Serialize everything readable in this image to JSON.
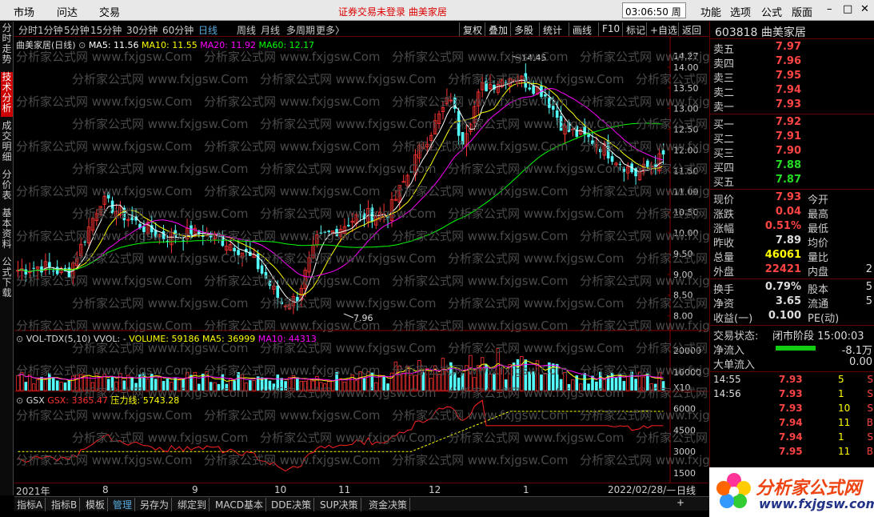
{
  "menu": {
    "market": "市场",
    "wenda": "问达",
    "trade": "交易",
    "notice": "证券交易未登录  曲美家居",
    "clock": "03:06:50 周三",
    "func": "功能",
    "options": "选项",
    "formula": "公式",
    "layout": "版面",
    "min": "–",
    "max": "□",
    "close": "✕"
  },
  "leftnav": [
    {
      "label": "分时走势"
    },
    {
      "label": "技术分析",
      "active": true
    },
    {
      "label": "成交明细"
    },
    {
      "label": "分价表"
    },
    {
      "label": "基本资料"
    },
    {
      "label": "公式下载"
    }
  ],
  "periods": [
    "分时",
    "1分钟",
    "5分钟",
    "15分钟",
    "30分钟",
    "60分钟",
    "日线",
    "周线",
    "月线",
    "多周期",
    "更多〉"
  ],
  "active_period": "日线",
  "tools": [
    "复权",
    "叠加",
    "多股",
    "统计",
    "画线",
    "F10",
    "标记",
    "+自选",
    "返回"
  ],
  "main_legend": {
    "name": "曲美家居(日线)",
    "ma5": "MA5: 11.56",
    "ma10": "MA10: 11.55",
    "ma20": "MA20: 11.92",
    "ma60": "MA60: 12.17"
  },
  "vol_legend": {
    "name": "VOL-TDX(5,10)",
    "vvol": "VVOL: -",
    "volume": "VOLUME: 59186",
    "ma5": "MA5: 36999",
    "ma10": "MA10: 44313"
  },
  "gsx_legend": {
    "name": "GSX",
    "gsx": "GSX: 3365.47",
    "yl": "压力线: 5743.28"
  },
  "price_axis": [
    "14.27",
    "14.00",
    "13.50",
    "13.00",
    "12.50",
    "12.00",
    "11.50",
    "11.00",
    "10.50",
    "10.00",
    "9.50",
    "9.00",
    "8.50",
    "8.00"
  ],
  "vol_axis": [
    "20000",
    "10000",
    "X10"
  ],
  "gsx_axis": [
    "6000",
    "4500",
    "3000",
    "1500"
  ],
  "hi_label": "14.45",
  "lo_label": "7.96",
  "dates": [
    "2021年",
    "8",
    "9",
    "10",
    "11",
    "12",
    "1",
    "2022/02/28/—"
  ],
  "dayline_btn": "日线",
  "colors": {
    "up": "#ff3333",
    "down": "#54ffff",
    "ma5": "#ffffff",
    "ma10": "#ffff00",
    "ma20": "#ff00ff",
    "ma60": "#00ff00"
  },
  "chart_data": {
    "type": "candlestick",
    "ma_last": {
      "MA5": 11.56,
      "MA10": 11.55,
      "MA20": 11.92,
      "MA60": 12.17
    },
    "high": 14.45,
    "low": 7.96
  },
  "quote": {
    "code": "603818",
    "name": "曲美家居",
    "asks": [
      {
        "l": "卖五",
        "p": "7.97"
      },
      {
        "l": "卖四",
        "p": "7.96"
      },
      {
        "l": "卖三",
        "p": "7.95"
      },
      {
        "l": "卖二",
        "p": "7.94"
      },
      {
        "l": "卖一",
        "p": "7.93"
      }
    ],
    "bids": [
      {
        "l": "买一",
        "p": "7.92",
        "c": "red"
      },
      {
        "l": "买二",
        "p": "7.91",
        "c": "red"
      },
      {
        "l": "买三",
        "p": "7.90",
        "c": "red"
      },
      {
        "l": "买四",
        "p": "7.88",
        "c": "green"
      },
      {
        "l": "买五",
        "p": "7.87",
        "c": "green"
      }
    ],
    "stats": [
      {
        "l": "现价",
        "v": "7.93",
        "c": "red",
        "l2": "今开",
        "v2": ""
      },
      {
        "l": "涨跌",
        "v": "0.04",
        "c": "red",
        "l2": "最高",
        "v2": ""
      },
      {
        "l": "涨幅",
        "v": "0.51%",
        "c": "red",
        "l2": "最低",
        "v2": ""
      },
      {
        "l": "昨收",
        "v": "7.89",
        "c": "white",
        "l2": "均价",
        "v2": ""
      },
      {
        "l": "总量",
        "v": "46061",
        "c": "yel",
        "l2": "量比",
        "v2": ""
      },
      {
        "l": "外盘",
        "v": "22421",
        "c": "red",
        "l2": "内盘",
        "v2": "2"
      }
    ],
    "stats2": [
      {
        "l": "换手",
        "v": "0.79%",
        "l2": "股本",
        "v2": "5"
      },
      {
        "l": "净资",
        "v": "3.65",
        "l2": "流通",
        "v2": "5"
      },
      {
        "l": "收益(一)",
        "v": "0.100",
        "l2": "PE(动)",
        "v2": ""
      }
    ],
    "status_label": "交易状态:",
    "status": "闭市阶段 15:00:03",
    "netin_label": "净流入",
    "netin": "-8.1万",
    "bigin_label": "大单流入",
    "bigin": "0.00",
    "ticks": [
      {
        "t": "14:55",
        "p": "7.93",
        "q": "5",
        "s": "S"
      },
      {
        "t": "14:56",
        "p": "7.93",
        "q": "1",
        "s": "S"
      },
      {
        "t": "",
        "p": "7.93",
        "q": "10",
        "s": "S"
      },
      {
        "t": "",
        "p": "7.94",
        "q": "11",
        "s": "B"
      },
      {
        "t": "",
        "p": "7.94",
        "q": "1",
        "s": "S"
      },
      {
        "t": "",
        "p": "7.95",
        "q": "11",
        "s": "B"
      }
    ]
  },
  "bottom": [
    "指标A",
    "指标B",
    "模板",
    "管理",
    "另存为",
    "绑定到",
    "MACD基本",
    "DDE决策",
    "SUP决策",
    "资金决策"
  ],
  "bottom_active": "管理",
  "plus": "+",
  "logo1": "分析家公式网",
  "logo2": "www.fxjgsw.com",
  "watermark": "分析家公式网 www.fxjgsw.Com"
}
